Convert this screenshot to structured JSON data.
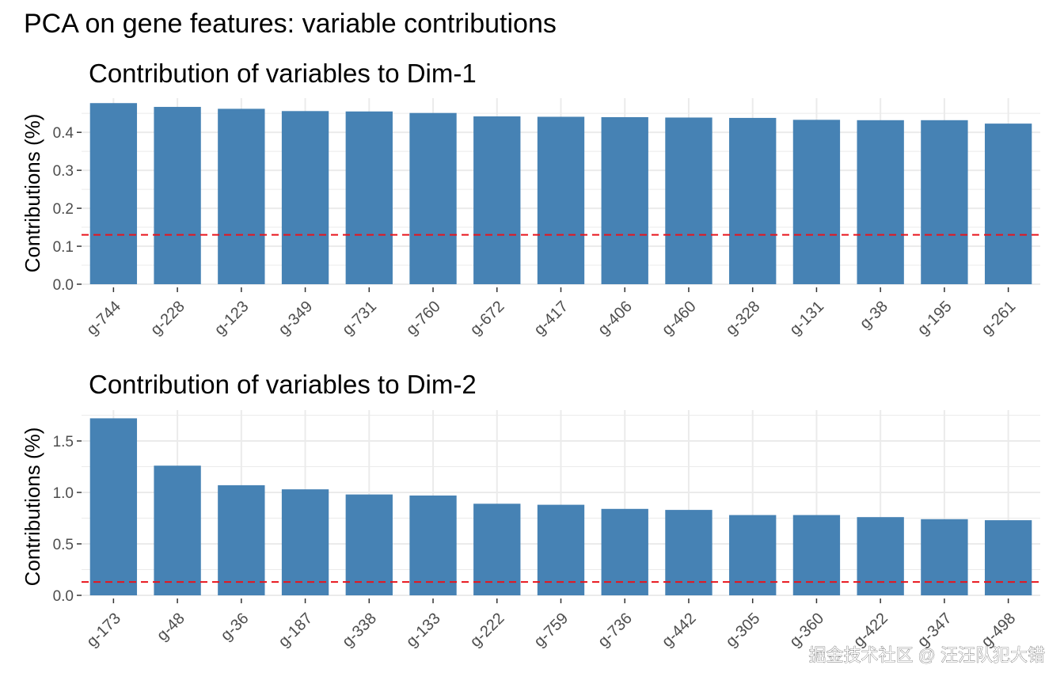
{
  "figure_title": "PCA on gene features: variable contributions",
  "watermark": "掘金技术社区 @ 汪汪队犯大错",
  "colors": {
    "bar": "#4682b4",
    "reference_line": "#e8141c",
    "grid": "#ebebeb"
  },
  "chart_data": [
    {
      "type": "bar",
      "title": "Contribution of variables to Dim-1",
      "xlabel": "",
      "ylabel": "Contributions (%)",
      "categories": [
        "g-744",
        "g-228",
        "g-123",
        "g-349",
        "g-731",
        "g-760",
        "g-672",
        "g-417",
        "g-406",
        "g-460",
        "g-328",
        "g-131",
        "g-38",
        "g-195",
        "g-261"
      ],
      "values": [
        0.477,
        0.467,
        0.462,
        0.456,
        0.455,
        0.451,
        0.442,
        0.441,
        0.44,
        0.439,
        0.438,
        0.433,
        0.432,
        0.432,
        0.423
      ],
      "ylim": [
        0,
        0.49
      ],
      "yticks": [
        0.0,
        0.1,
        0.2,
        0.3,
        0.4
      ],
      "ytick_labels": [
        "0.0",
        "0.1",
        "0.2",
        "0.3",
        "0.4"
      ],
      "reference_line": 0.13,
      "grid": true,
      "legend": "none"
    },
    {
      "type": "bar",
      "title": "Contribution of variables to Dim-2",
      "xlabel": "",
      "ylabel": "Contributions (%)",
      "categories": [
        "g-173",
        "g-48",
        "g-36",
        "g-187",
        "g-338",
        "g-133",
        "g-222",
        "g-759",
        "g-736",
        "g-442",
        "g-305",
        "g-360",
        "g-422",
        "g-347",
        "g-498"
      ],
      "values": [
        1.72,
        1.26,
        1.07,
        1.03,
        0.98,
        0.97,
        0.89,
        0.88,
        0.84,
        0.83,
        0.78,
        0.78,
        0.76,
        0.74,
        0.73
      ],
      "ylim": [
        0,
        1.8
      ],
      "yticks": [
        0.0,
        0.5,
        1.0,
        1.5
      ],
      "ytick_labels": [
        "0.0",
        "0.5",
        "1.0",
        "1.5"
      ],
      "reference_line": 0.13,
      "grid": true,
      "legend": "none"
    }
  ]
}
